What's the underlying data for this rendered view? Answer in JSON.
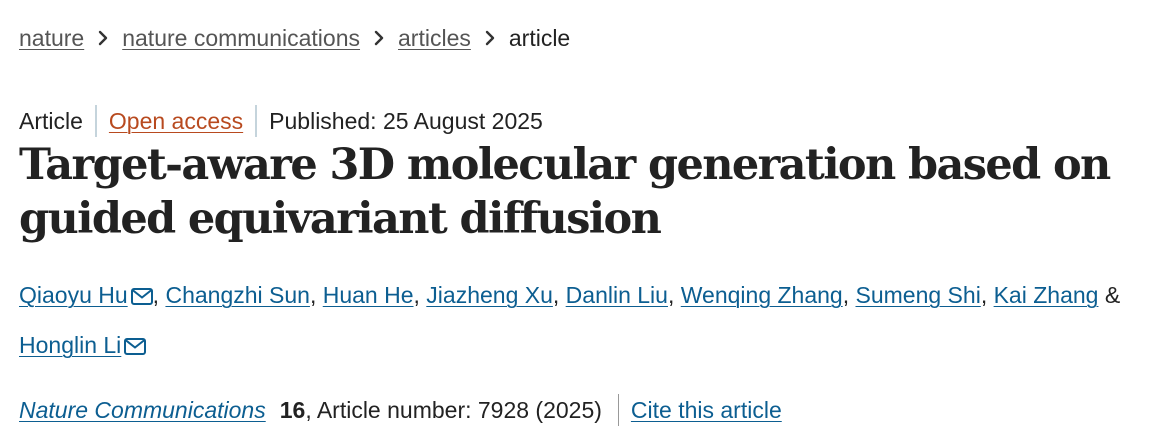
{
  "breadcrumb": {
    "items": [
      {
        "label": "nature"
      },
      {
        "label": "nature communications"
      },
      {
        "label": "articles"
      }
    ],
    "current": "article",
    "separator_icon": "chevron-right-icon"
  },
  "meta": {
    "type": "Article",
    "access": "Open access",
    "published": "Published: 25 August 2025"
  },
  "article": {
    "title": "Target-aware 3D molecular generation based on guided equivariant diffusion"
  },
  "authors": {
    "list": [
      {
        "name": "Qiaoyu Hu",
        "sep": ", "
      },
      {
        "name": "Changzhi Sun",
        "sep": ", "
      },
      {
        "name": "Huan He",
        "sep": ", "
      },
      {
        "name": "Jiazheng Xu",
        "sep": ", "
      },
      {
        "name": "Danlin Liu",
        "sep": ", "
      },
      {
        "name": "Wenqing Zhang",
        "sep": ", "
      },
      {
        "name": "Sumeng Shi",
        "sep": ", "
      },
      {
        "name": "Kai Zhang",
        "sep": " & "
      }
    ],
    "last": {
      "name": "Honglin Li"
    },
    "mail_icon": "envelope-icon"
  },
  "citation": {
    "journal": "Nature Communications",
    "volume": "16",
    "details": ", Article number: 7928 (2025)",
    "cite_link": "Cite this article"
  },
  "colors": {
    "link": "#0c5e91",
    "open_access": "#b84a1f",
    "breadcrumb_link": "#555555",
    "text": "#222222"
  }
}
